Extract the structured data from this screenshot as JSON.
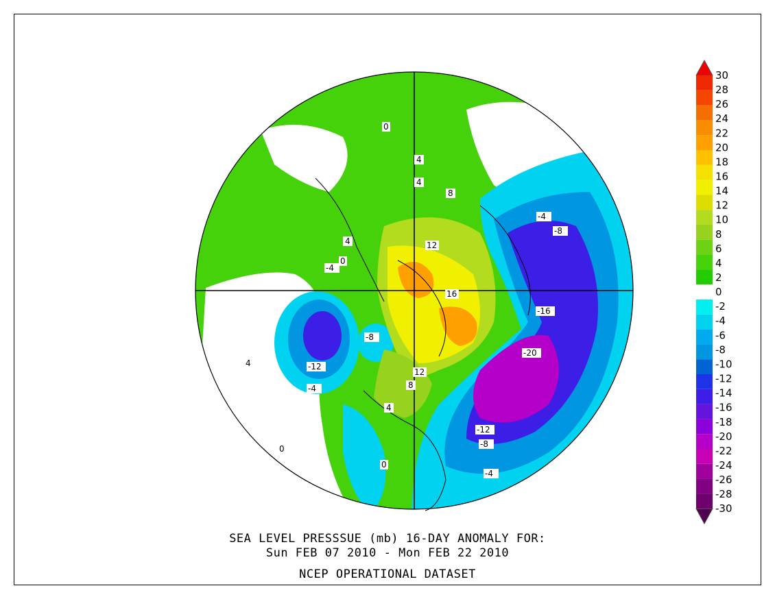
{
  "title": {
    "line1": "SEA LEVEL PRESSSUE (mb)   16-DAY ANOMALY FOR:",
    "line2": "Sun FEB 07 2010 - Mon FEB 22 2010",
    "line3": "NCEP OPERATIONAL DATASET"
  },
  "colorbar": {
    "levels": [
      {
        "label": "30",
        "color": "#f00000"
      },
      {
        "label": "28",
        "color": "#f02800"
      },
      {
        "label": "26",
        "color": "#f54600"
      },
      {
        "label": "24",
        "color": "#f76e00"
      },
      {
        "label": "22",
        "color": "#fa8c00"
      },
      {
        "label": "20",
        "color": "#ffa000"
      },
      {
        "label": "18",
        "color": "#ffc000"
      },
      {
        "label": "16",
        "color": "#f5e100"
      },
      {
        "label": "14",
        "color": "#f0f000"
      },
      {
        "label": "12",
        "color": "#dcdc00"
      },
      {
        "label": "10",
        "color": "#b4dc1e"
      },
      {
        "label": "8",
        "color": "#96d21e"
      },
      {
        "label": "6",
        "color": "#6ed214"
      },
      {
        "label": "4",
        "color": "#46d20a"
      },
      {
        "label": "2",
        "color": "#22cc00"
      },
      {
        "label": "0",
        "color": "#ffffff"
      },
      {
        "label": "-2",
        "color": "#00f0f0"
      },
      {
        "label": "-4",
        "color": "#00d2f0"
      },
      {
        "label": "-6",
        "color": "#00aaf0"
      },
      {
        "label": "-8",
        "color": "#0096e1"
      },
      {
        "label": "-10",
        "color": "#0064d2"
      },
      {
        "label": "-12",
        "color": "#1e32e6"
      },
      {
        "label": "-14",
        "color": "#3c1ee6"
      },
      {
        "label": "-16",
        "color": "#6414dc"
      },
      {
        "label": "-18",
        "color": "#8c00dc"
      },
      {
        "label": "-20",
        "color": "#b400c8"
      },
      {
        "label": "-22",
        "color": "#c800b4"
      },
      {
        "label": "-24",
        "color": "#a0009b"
      },
      {
        "label": "-26",
        "color": "#820082"
      },
      {
        "label": "-28",
        "color": "#6e006e"
      },
      {
        "label": "-30",
        "color": "#500050"
      }
    ]
  },
  "map_labels": {
    "pos4_a": "4",
    "pos4_b": "4",
    "pos4_c": "4",
    "pos4_d": "4",
    "pos4_e": "4",
    "pos8_a": "8",
    "pos8_b": "8",
    "pos12_a": "12",
    "pos12_b": "12",
    "pos16": "16",
    "zero_a": "0",
    "zero_b": "0",
    "zero_c": "0",
    "zero_d": "0",
    "neg4_a": "-4",
    "neg4_b": "-4",
    "neg4_c": "-4",
    "neg4_d": "-4",
    "neg8_a": "-8",
    "neg8_b": "-8",
    "neg8_c": "-8",
    "neg12_a": "-12",
    "neg12_b": "-12",
    "neg16": "-16",
    "neg20": "-20"
  }
}
